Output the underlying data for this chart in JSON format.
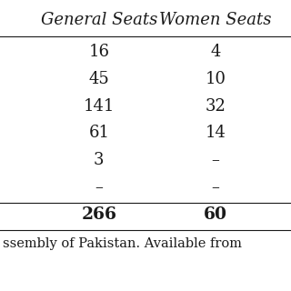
{
  "headers": [
    "General Seats",
    "Women Seats"
  ],
  "rows": [
    [
      "16",
      "4"
    ],
    [
      "45",
      "10"
    ],
    [
      "141",
      "32"
    ],
    [
      "61",
      "14"
    ],
    [
      "3",
      "–"
    ],
    [
      "–",
      "–"
    ],
    [
      "266",
      "60"
    ]
  ],
  "bold_last_row": true,
  "footer_text": "ssembly of Pakistan. Available from",
  "bg_color": "#ffffff",
  "text_color": "#1a1a1a",
  "font_size": 13,
  "header_font_size": 13
}
